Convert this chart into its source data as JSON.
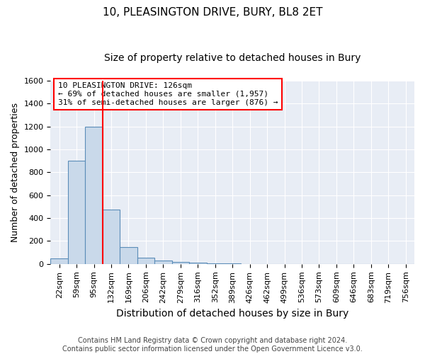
{
  "title": "10, PLEASINGTON DRIVE, BURY, BL8 2ET",
  "subtitle": "Size of property relative to detached houses in Bury",
  "xlabel": "Distribution of detached houses by size in Bury",
  "ylabel": "Number of detached properties",
  "bin_labels": [
    "22sqm",
    "59sqm",
    "95sqm",
    "132sqm",
    "169sqm",
    "206sqm",
    "242sqm",
    "279sqm",
    "316sqm",
    "352sqm",
    "389sqm",
    "426sqm",
    "462sqm",
    "499sqm",
    "536sqm",
    "573sqm",
    "609sqm",
    "646sqm",
    "683sqm",
    "719sqm",
    "756sqm"
  ],
  "bar_heights": [
    50,
    900,
    1200,
    475,
    150,
    55,
    30,
    15,
    10,
    5,
    3,
    0,
    0,
    0,
    0,
    0,
    0,
    0,
    0,
    0,
    0
  ],
  "bar_color": "#c9d9ea",
  "bar_edge_color": "#5b8db8",
  "vline_color": "red",
  "vline_x_index": 2.5,
  "annotation_text": "10 PLEASINGTON DRIVE: 126sqm\n← 69% of detached houses are smaller (1,957)\n31% of semi-detached houses are larger (876) →",
  "annotation_box_color": "white",
  "annotation_box_edge": "red",
  "ylim": [
    0,
    1600
  ],
  "yticks": [
    0,
    200,
    400,
    600,
    800,
    1000,
    1200,
    1400,
    1600
  ],
  "footer_text": "Contains HM Land Registry data © Crown copyright and database right 2024.\nContains public sector information licensed under the Open Government Licence v3.0.",
  "plot_bg_color": "#e8edf5",
  "fig_bg_color": "white",
  "grid_color": "white",
  "title_fontsize": 11,
  "subtitle_fontsize": 10,
  "axis_label_fontsize": 9,
  "tick_fontsize": 8,
  "footer_fontsize": 7
}
